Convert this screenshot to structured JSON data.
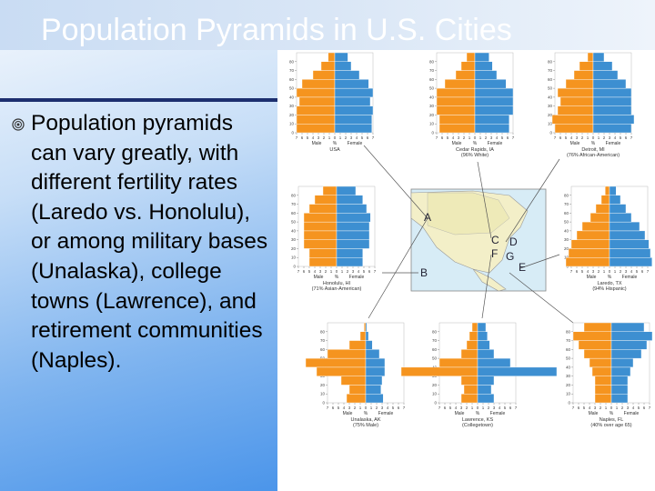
{
  "title": "Population Pyramids in U.S. Cities",
  "bullet": "Population pyramids can vary greatly, with different fertility rates (Laredo vs. Honolulu), or among military bases (Unalaska), college towns (Lawrence), and retirement communities (Naples).",
  "pyramid_axis": {
    "male_label": "Male",
    "female_label": "Female",
    "unit": "%",
    "male_color": "#f5941f",
    "female_color": "#3d8fd1",
    "xlim": [
      -7,
      7
    ],
    "xticks": [
      {
        "value": -7,
        "label": "7"
      },
      {
        "value": -6,
        "label": "6"
      },
      {
        "value": -5,
        "label": "5"
      },
      {
        "value": -4,
        "label": "4"
      },
      {
        "value": -3,
        "label": "3"
      },
      {
        "value": -2,
        "label": "2"
      },
      {
        "value": -1,
        "label": "1"
      },
      0,
      1,
      2,
      3,
      4,
      5,
      6,
      7
    ],
    "ylim": [
      0,
      90
    ],
    "yticks": [
      0,
      10,
      20,
      30,
      40,
      50,
      60,
      70,
      80
    ]
  },
  "pyramids": [
    {
      "caption": "USA",
      "male": [
        7,
        7,
        7,
        6.5,
        7,
        6,
        4,
        2.5,
        1.2
      ],
      "female": [
        6.8,
        6.8,
        7,
        6.5,
        7,
        6.2,
        4.5,
        3,
        2.4
      ]
    },
    {
      "caption": "Cedar Rapids, IA",
      "subcaption": "(96% White)",
      "male": [
        6.5,
        6.5,
        7,
        7,
        7,
        5.5,
        3.5,
        2.5,
        1.5
      ],
      "female": [
        6.3,
        6.3,
        7,
        7,
        7,
        5.7,
        4,
        3.2,
        2.6
      ]
    },
    {
      "caption": "Detroit, MI",
      "subcaption": "(76% African-American)",
      "male": [
        7,
        7.5,
        6.5,
        6,
        6.5,
        5,
        3.5,
        2.5,
        1
      ],
      "female": [
        7,
        7.5,
        7,
        7,
        7,
        6,
        4.5,
        3.5,
        2
      ]
    },
    {
      "caption": "Honolulu, HI",
      "subcaption": "(71% Asian-American)",
      "male": [
        5,
        5,
        6,
        6,
        6,
        6,
        5,
        4,
        2.5
      ],
      "female": [
        4.8,
        4.8,
        6,
        6,
        6,
        6.2,
        5.5,
        4.8,
        3.5
      ]
    },
    {
      "caption": "Laredo, TX",
      "subcaption": "(94% Hispanic)",
      "male": [
        8,
        7.5,
        7,
        6,
        5,
        3.5,
        2.5,
        1.5,
        0.8
      ],
      "female": [
        7.8,
        7.5,
        7.2,
        6.5,
        5.5,
        4,
        3,
        2,
        1.2
      ]
    },
    {
      "caption": "Unalaska, AK",
      "subcaption": "(75% Male)",
      "male": [
        3.5,
        3,
        4.5,
        9,
        11,
        7,
        3,
        1,
        0.3
      ],
      "female": [
        3.2,
        2.8,
        3,
        3.5,
        3.5,
        2.5,
        1.2,
        0.5,
        0.2
      ]
    },
    {
      "caption": "Lawrence, KS",
      "subcaption": "(Collegetown)",
      "male": [
        3,
        2.5,
        3,
        14,
        7,
        3,
        2,
        1.5,
        1
      ],
      "female": [
        3,
        2.5,
        3,
        14.5,
        6,
        3,
        2.2,
        1.8,
        1.5
      ]
    },
    {
      "caption": "Naples, FL",
      "subcaption": "(40% over age 65)",
      "male": [
        3,
        3,
        3,
        3.5,
        4,
        5,
        6,
        7,
        5
      ],
      "female": [
        3,
        3,
        3,
        3.5,
        4,
        5.5,
        6.5,
        7.5,
        6
      ]
    }
  ],
  "map_labels": [
    "A",
    "B",
    "C",
    "D",
    "E",
    "F",
    "G"
  ]
}
